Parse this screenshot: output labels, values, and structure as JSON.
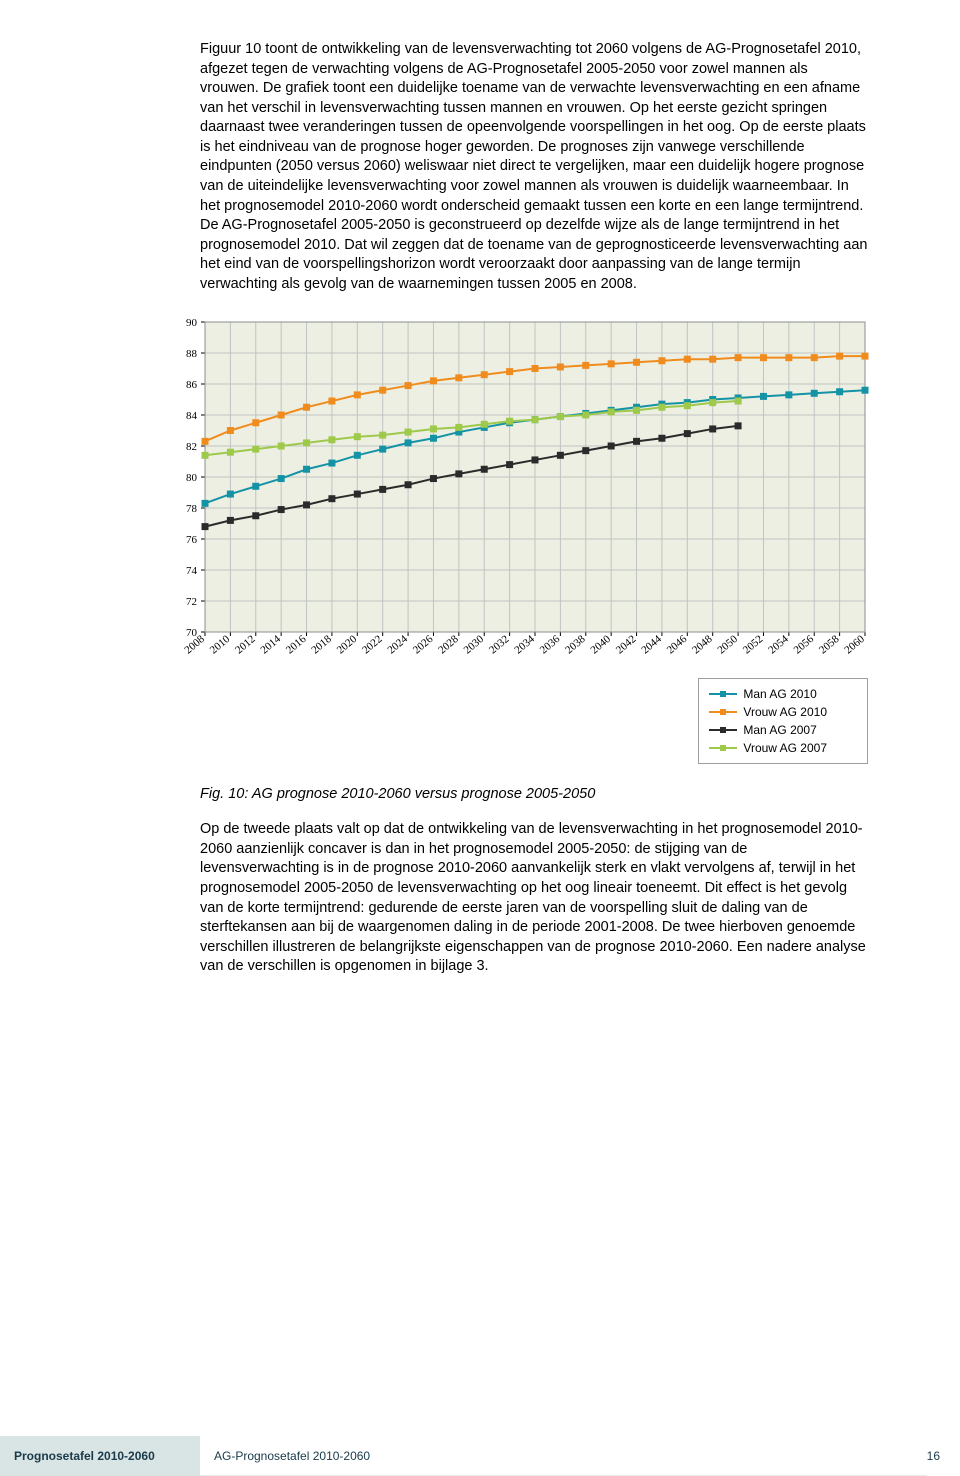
{
  "paragraph1": "Figuur 10 toont de ontwikkeling van de levensverwachting tot 2060 volgens de AG-Prognosetafel 2010, afgezet tegen de verwachting volgens de AG-Prognosetafel 2005-2050 voor zowel mannen als vrouwen. De grafiek toont een duidelijke toename van de verwachte levensverwachting en een afname van het verschil in levensverwachting tussen mannen en vrouwen. Op het eerste gezicht springen daarnaast twee veranderingen tussen de opeenvolgende voorspellingen in het oog. Op de eerste plaats is het eindniveau van de prognose hoger geworden. De prognoses zijn vanwege verschillende eindpunten (2050 versus 2060) weliswaar niet direct te vergelijken, maar een duidelijk hogere prognose van de uiteindelijke levensverwachting voor zowel mannen als vrouwen is duidelijk waarneembaar. In het prognosemodel 2010-2060 wordt onderscheid gemaakt tussen een korte en een lange termijntrend. De AG-Prognosetafel 2005-2050 is geconstrueerd op dezelfde wijze als de lange termijntrend in het prognosemodel 2010. Dat wil zeggen dat de toename van de geprognosticeerde levensverwachting aan het eind van de voorspellingshorizon wordt veroorzaakt door aanpassing van de lange termijn verwachting als gevolg van de waarnemingen tussen 2005 en 2008.",
  "caption": "Fig. 10: AG prognose 2010-2060 versus prognose 2005-2050",
  "paragraph2": "Op de tweede plaats valt op dat de ontwikkeling van de levensverwachting in het prognosemodel 2010-2060 aanzienlijk concaver is dan in het prognosemodel 2005-2050: de stijging van de levensverwachting is in de prognose 2010-2060 aanvankelijk sterk en vlakt vervolgens af, terwijl in het prognosemodel 2005-2050 de levensverwachting op het oog lineair toeneemt. Dit effect is het gevolg van de korte termijntrend: gedurende de eerste jaren van de voorspelling sluit de daling van de sterftekansen aan bij de waargenomen daling in de periode 2001-2008. De twee hierboven genoemde verschillen illustreren de belangrijkste eigenschappen van de prognose 2010-2060. Een nadere analyse van de verschillen is opgenomen in bijlage 3.",
  "footer": {
    "left": "Prognosetafel 2010-2060",
    "mid": "AG-Prognosetafel 2010-2060",
    "page": "16"
  },
  "chart": {
    "type": "line",
    "background_color": "#edefe2",
    "plot_border_color": "#8a8f8f",
    "grid_color": "#bfc4c4",
    "ylim": [
      70,
      90
    ],
    "ytick_step": 2,
    "yticks": [
      70,
      72,
      74,
      76,
      78,
      80,
      82,
      84,
      86,
      88,
      90
    ],
    "xlim": [
      2008,
      2060
    ],
    "xtick_step": 2,
    "xticks": [
      2008,
      2010,
      2012,
      2014,
      2016,
      2018,
      2020,
      2022,
      2024,
      2026,
      2028,
      2030,
      2032,
      2034,
      2036,
      2038,
      2040,
      2042,
      2044,
      2046,
      2048,
      2050,
      2052,
      2054,
      2056,
      2058,
      2060
    ],
    "axis_fontsize": 11,
    "series": [
      {
        "name": "Man AG 2010",
        "color": "#1593a6",
        "marker": "square",
        "x": [
          2008,
          2010,
          2012,
          2014,
          2016,
          2018,
          2020,
          2022,
          2024,
          2026,
          2028,
          2030,
          2032,
          2034,
          2036,
          2038,
          2040,
          2042,
          2044,
          2046,
          2048,
          2050,
          2052,
          2054,
          2056,
          2058,
          2060
        ],
        "y": [
          78.3,
          78.9,
          79.4,
          79.9,
          80.5,
          80.9,
          81.4,
          81.8,
          82.2,
          82.5,
          82.9,
          83.2,
          83.5,
          83.7,
          83.9,
          84.1,
          84.3,
          84.5,
          84.7,
          84.8,
          85.0,
          85.1,
          85.2,
          85.3,
          85.4,
          85.5,
          85.6
        ]
      },
      {
        "name": "Vrouw AG 2010",
        "color": "#f08c1e",
        "marker": "square",
        "x": [
          2008,
          2010,
          2012,
          2014,
          2016,
          2018,
          2020,
          2022,
          2024,
          2026,
          2028,
          2030,
          2032,
          2034,
          2036,
          2038,
          2040,
          2042,
          2044,
          2046,
          2048,
          2050,
          2052,
          2054,
          2056,
          2058,
          2060
        ],
        "y": [
          82.3,
          83.0,
          83.5,
          84.0,
          84.5,
          84.9,
          85.3,
          85.6,
          85.9,
          86.2,
          86.4,
          86.6,
          86.8,
          87.0,
          87.1,
          87.2,
          87.3,
          87.4,
          87.5,
          87.6,
          87.6,
          87.7,
          87.7,
          87.7,
          87.7,
          87.8,
          87.8
        ]
      },
      {
        "name": "Man AG 2007",
        "color": "#2b2b2b",
        "marker": "square",
        "x": [
          2008,
          2010,
          2012,
          2014,
          2016,
          2018,
          2020,
          2022,
          2024,
          2026,
          2028,
          2030,
          2032,
          2034,
          2036,
          2038,
          2040,
          2042,
          2044,
          2046,
          2048,
          2050
        ],
        "y": [
          76.8,
          77.2,
          77.5,
          77.9,
          78.2,
          78.6,
          78.9,
          79.2,
          79.5,
          79.9,
          80.2,
          80.5,
          80.8,
          81.1,
          81.4,
          81.7,
          82.0,
          82.3,
          82.5,
          82.8,
          83.1,
          83.3
        ]
      },
      {
        "name": "Vrouw AG 2007",
        "color": "#9ec94a",
        "marker": "square",
        "x": [
          2008,
          2010,
          2012,
          2014,
          2016,
          2018,
          2020,
          2022,
          2024,
          2026,
          2028,
          2030,
          2032,
          2034,
          2036,
          2038,
          2040,
          2042,
          2044,
          2046,
          2048,
          2050
        ],
        "y": [
          81.4,
          81.6,
          81.8,
          82.0,
          82.2,
          82.4,
          82.6,
          82.7,
          82.9,
          83.1,
          83.2,
          83.4,
          83.6,
          83.7,
          83.9,
          84.0,
          84.2,
          84.3,
          84.5,
          84.6,
          84.8,
          84.9
        ]
      }
    ],
    "legend": {
      "border_color": "#9aa0a0",
      "fontsize": 12,
      "items": [
        {
          "label": "Man AG 2010",
          "color": "#1593a6"
        },
        {
          "label": "Vrouw AG 2010",
          "color": "#f08c1e"
        },
        {
          "label": "Man AG 2007",
          "color": "#2b2b2b"
        },
        {
          "label": "Vrouw AG 2007",
          "color": "#9ec94a"
        }
      ]
    }
  }
}
